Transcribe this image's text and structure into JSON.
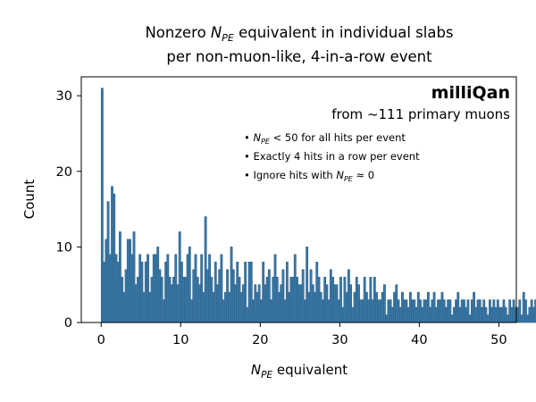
{
  "chart_data": {
    "type": "bar",
    "title_line1_pre": "Nonzero ",
    "title_line1_post": " equivalent in individual slabs",
    "title_line2": "per non-muon-like, 4-in-a-row event",
    "xlabel_post": " equivalent",
    "ylabel": "Count",
    "xlim": [
      -2.5,
      52.2
    ],
    "ylim": [
      0,
      32.5
    ],
    "xticks": [
      0,
      10,
      20,
      30,
      40,
      50
    ],
    "yticks": [
      0,
      10,
      20,
      30
    ],
    "bin_width": 0.25,
    "x_start": 0.0,
    "values": [
      31,
      8,
      11,
      16,
      9,
      18,
      17,
      9,
      8,
      12,
      6,
      4,
      7,
      11,
      11,
      9,
      12,
      5,
      6,
      9,
      8,
      4,
      8,
      9,
      4,
      6,
      9,
      9,
      10,
      7,
      6,
      3,
      8,
      9,
      6,
      5,
      6,
      9,
      5,
      12,
      8,
      6,
      6,
      9,
      10,
      3,
      7,
      9,
      6,
      5,
      9,
      4,
      14,
      7,
      9,
      6,
      4,
      8,
      5,
      7,
      9,
      3,
      4,
      7,
      4,
      10,
      7,
      5,
      8,
      6,
      4,
      5,
      8,
      2,
      8,
      8,
      3,
      5,
      4,
      5,
      3,
      8,
      5,
      6,
      7,
      3,
      6,
      9,
      6,
      4,
      5,
      7,
      3,
      8,
      4,
      6,
      6,
      9,
      6,
      5,
      5,
      7,
      3,
      10,
      4,
      7,
      5,
      4,
      8,
      6,
      4,
      3,
      6,
      5,
      3,
      7,
      6,
      5,
      5,
      3,
      6,
      2,
      6,
      4,
      7,
      5,
      2,
      4,
      6,
      5,
      3,
      3,
      6,
      4,
      3,
      6,
      3,
      6,
      4,
      3,
      3,
      4,
      5,
      1,
      3,
      3,
      2,
      4,
      5,
      3,
      2,
      4,
      3,
      3,
      2,
      4,
      3,
      3,
      2,
      4,
      3,
      2,
      3,
      3,
      4,
      2,
      3,
      4,
      2,
      3,
      3,
      4,
      3,
      2,
      3,
      3,
      1,
      2,
      3,
      4,
      2,
      3,
      3,
      2,
      3,
      1,
      3,
      4,
      2,
      3,
      3,
      2,
      3,
      2,
      1,
      3,
      2,
      3,
      2,
      3,
      2,
      2,
      3,
      2,
      1,
      3,
      2,
      3,
      2,
      2,
      3,
      1,
      4,
      3,
      1,
      2,
      3,
      2,
      3,
      3,
      1,
      2,
      3,
      2,
      1,
      2,
      4,
      2,
      1,
      3,
      2,
      2,
      1,
      2,
      3,
      1,
      2,
      4,
      2,
      3,
      1,
      2,
      1,
      3,
      4,
      2,
      3,
      1,
      2,
      2,
      1,
      2,
      3,
      2,
      1,
      3,
      2,
      4,
      1,
      2,
      3,
      1,
      2,
      3,
      2,
      1,
      2,
      2
    ]
  },
  "annotation": {
    "brand": "milliQan",
    "source": "from ~111 primary muons",
    "bullet1_pre": "• ",
    "bullet1_post": " < 50 for all hits per event",
    "bullet2": "• Exactly 4 hits in a row per event",
    "bullet3_pre": "• Ignore hits with ",
    "bullet3_post": " ≈ 0"
  },
  "symbol": {
    "main": "N",
    "sub": "PE"
  },
  "colors": {
    "bar_fill": "#3b79a8",
    "bar_edge": "#2b5f86"
  }
}
